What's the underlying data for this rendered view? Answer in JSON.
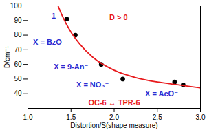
{
  "chart_data": {
    "type": "scatter",
    "x_label": "Distortion/S(shape measure)",
    "y_label": "D/cm⁻¹",
    "xlim": [
      1.0,
      3.0
    ],
    "ylim": [
      30,
      100
    ],
    "xticks": [
      {
        "value": 1.0,
        "label": "1.0"
      },
      1.5,
      {
        "value": 2.0,
        "label": "2.0"
      },
      2.5,
      {
        "value": 3.0,
        "label": "3.0"
      }
    ],
    "yticks": [
      40,
      50,
      60,
      70,
      80,
      90,
      100
    ],
    "grid": false,
    "series": [
      {
        "type": "scatter",
        "color": "#000000",
        "marker": "circle",
        "x": [
          1.45,
          1.55,
          1.85,
          2.1,
          2.7,
          2.8
        ],
        "values": [
          91,
          80,
          60,
          50,
          48,
          46
        ]
      },
      {
        "type": "line",
        "color": "#e8191c",
        "line_style": "solid",
        "x": [
          1.35,
          1.4,
          1.5,
          1.6,
          1.75,
          2.0,
          2.25,
          2.5,
          2.75,
          3.0
        ],
        "values": [
          100,
          93,
          82,
          74,
          65,
          56,
          51,
          48,
          46,
          44
        ]
      }
    ],
    "annotations": [
      {
        "text": "D > 0",
        "x": 2.05,
        "y": 92,
        "color": "#e8191c"
      },
      {
        "text": "1",
        "x": 1.3,
        "y": 93,
        "color": "#2b2bd1"
      },
      {
        "text": "X = BzO⁻",
        "x": 1.25,
        "y": 75,
        "color": "#2b2bd1"
      },
      {
        "text": "X = 9-An⁻",
        "x": 1.5,
        "y": 58,
        "color": "#2b2bd1"
      },
      {
        "text": "X = NO₃⁻",
        "x": 1.75,
        "y": 46,
        "color": "#2b2bd1"
      },
      {
        "text": "X = AcO⁻",
        "x": 2.55,
        "y": 40,
        "color": "#2b2bd1"
      },
      {
        "text": "OC-6 ↔ TPR-6",
        "x": 2.0,
        "y": 34,
        "color": "#e8191c"
      }
    ]
  }
}
